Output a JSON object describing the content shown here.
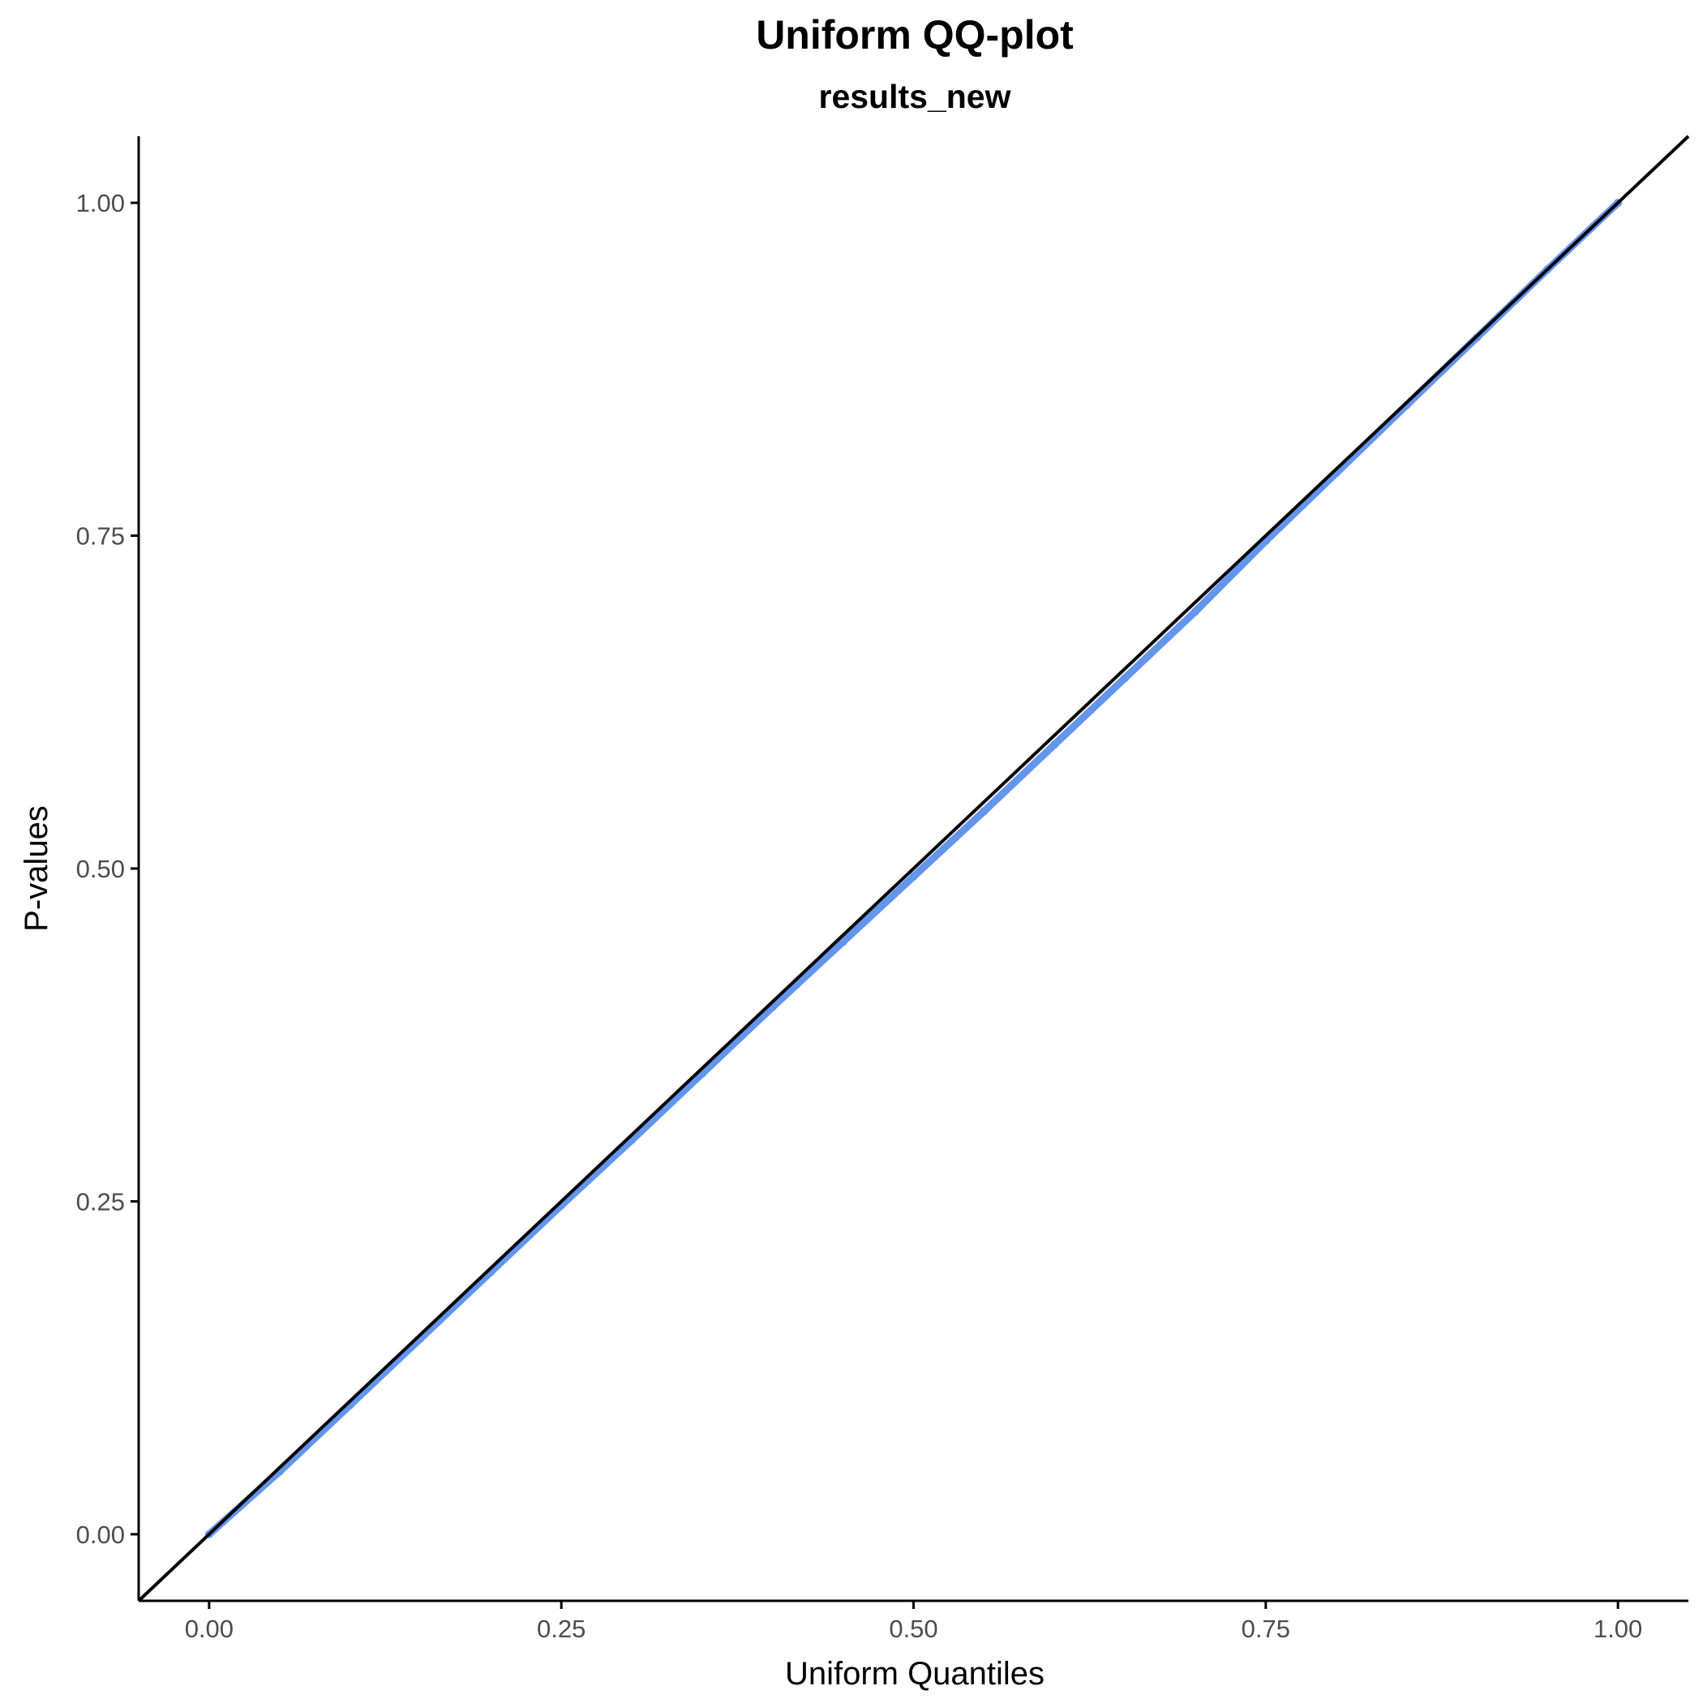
{
  "chart_data": {
    "type": "scatter",
    "title": "Uniform QQ-plot",
    "subtitle": "results_new",
    "xlabel": "Uniform Quantiles",
    "ylabel": "P-values",
    "xlim": [
      -0.05,
      1.05
    ],
    "ylim": [
      -0.05,
      1.05
    ],
    "x_ticks": [
      0,
      0.25,
      0.5,
      0.75,
      1
    ],
    "x_tick_labels": [
      "0.00",
      "0.25",
      "0.50",
      "0.75",
      "1.00"
    ],
    "y_ticks": [
      0,
      0.25,
      0.5,
      0.75,
      1
    ],
    "y_tick_labels": [
      "0.00",
      "0.25",
      "0.50",
      "0.75",
      "1.00"
    ],
    "grid": false,
    "reference_line": {
      "slope": 1,
      "intercept": 0,
      "color": "#000000"
    },
    "series": [
      {
        "color": "#6495ED",
        "points": [
          [
            0.0,
            0.0
          ],
          [
            0.05,
            0.047
          ],
          [
            0.1,
            0.097
          ],
          [
            0.15,
            0.147
          ],
          [
            0.2,
            0.197
          ],
          [
            0.25,
            0.247
          ],
          [
            0.3,
            0.296
          ],
          [
            0.35,
            0.346
          ],
          [
            0.4,
            0.396
          ],
          [
            0.45,
            0.445
          ],
          [
            0.5,
            0.494
          ],
          [
            0.55,
            0.543
          ],
          [
            0.6,
            0.593
          ],
          [
            0.65,
            0.643
          ],
          [
            0.7,
            0.693
          ],
          [
            0.75,
            0.746
          ],
          [
            0.8,
            0.797
          ],
          [
            0.85,
            0.848
          ],
          [
            0.9,
            0.899
          ],
          [
            0.95,
            0.95
          ],
          [
            1.0,
            1.0
          ]
        ]
      }
    ]
  }
}
